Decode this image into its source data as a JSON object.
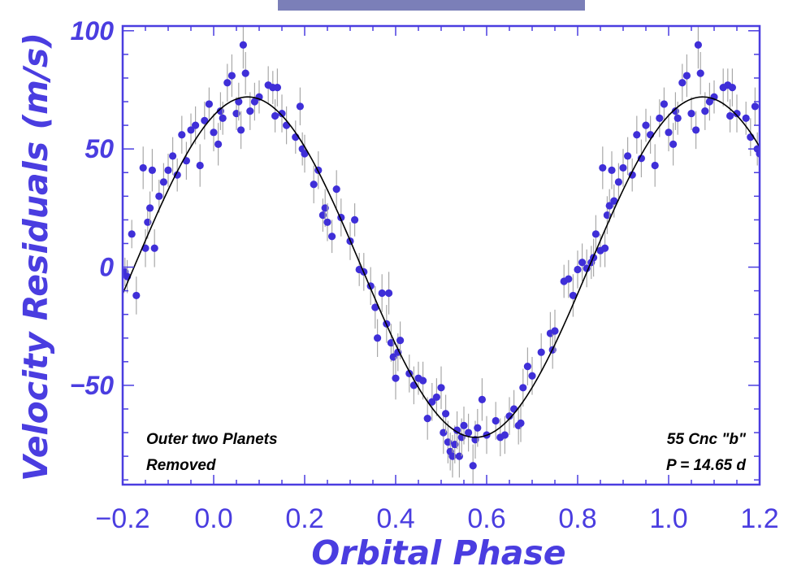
{
  "chart_data": {
    "type": "scatter",
    "title": "",
    "xlabel": "Orbital Phase",
    "ylabel": "Velocity Residuals (m/s)",
    "xlim": [
      -0.2,
      1.2
    ],
    "ylim": [
      -92,
      102
    ],
    "x_ticks": [
      -0.2,
      0.0,
      0.2,
      0.4,
      0.6,
      0.8,
      1.0,
      1.2
    ],
    "x_tick_labels": [
      "−0.2",
      "0.0",
      "0.2",
      "0.4",
      "0.6",
      "0.8",
      "1.0",
      "1.2"
    ],
    "y_ticks": [
      -50,
      0,
      50,
      100
    ],
    "y_tick_labels": [
      "−50",
      "0",
      "50",
      "100"
    ],
    "grid": false,
    "annotations": {
      "left_line1": "Outer two Planets",
      "left_line2": "Removed",
      "right_line1": "55 Cnc \"b\"",
      "right_line2": "P = 14.65 d"
    },
    "fit": {
      "amplitude": 72,
      "peak_phase": 0.075,
      "period_phase": 1.0
    },
    "series": [
      {
        "points": [
          [
            -0.195,
            -2,
            6
          ],
          [
            -0.19,
            -4,
            7
          ],
          [
            -0.18,
            14,
            6
          ],
          [
            -0.17,
            -12,
            8
          ],
          [
            -0.155,
            42,
            9
          ],
          [
            -0.15,
            8,
            8
          ],
          [
            -0.145,
            19,
            7
          ],
          [
            -0.14,
            25,
            7
          ],
          [
            -0.135,
            41,
            9
          ],
          [
            -0.13,
            8,
            8
          ],
          [
            -0.12,
            30,
            7
          ],
          [
            -0.11,
            36,
            8
          ],
          [
            -0.1,
            41,
            7
          ],
          [
            -0.09,
            47,
            8
          ],
          [
            -0.08,
            39,
            7
          ],
          [
            -0.07,
            56,
            8
          ],
          [
            -0.06,
            45,
            8
          ],
          [
            -0.05,
            58,
            7
          ],
          [
            -0.04,
            60,
            8
          ],
          [
            -0.03,
            43,
            9
          ],
          [
            -0.02,
            62,
            8
          ],
          [
            -0.01,
            69,
            7
          ],
          [
            0.0,
            57,
            8
          ],
          [
            0.01,
            52,
            9
          ],
          [
            0.015,
            66,
            8
          ],
          [
            0.02,
            63,
            7
          ],
          [
            0.03,
            78,
            8
          ],
          [
            0.04,
            81,
            9
          ],
          [
            0.05,
            65,
            7
          ],
          [
            0.055,
            70,
            8
          ],
          [
            0.06,
            58,
            8
          ],
          [
            0.065,
            94,
            10
          ],
          [
            0.07,
            82,
            9
          ],
          [
            0.08,
            66,
            8
          ],
          [
            0.09,
            70,
            8
          ],
          [
            0.1,
            72,
            7
          ],
          [
            0.12,
            77,
            8
          ],
          [
            0.13,
            76,
            7
          ],
          [
            0.135,
            64,
            7
          ],
          [
            0.14,
            76,
            8
          ],
          [
            0.15,
            65,
            8
          ],
          [
            0.16,
            60,
            8
          ],
          [
            0.18,
            55,
            7
          ],
          [
            0.19,
            68,
            8
          ],
          [
            0.195,
            50,
            7
          ],
          [
            0.2,
            48,
            8
          ],
          [
            0.22,
            35,
            8
          ],
          [
            0.23,
            41,
            8
          ],
          [
            0.24,
            22,
            7
          ],
          [
            0.245,
            25,
            8
          ],
          [
            0.25,
            19,
            8
          ],
          [
            0.26,
            13,
            7
          ],
          [
            0.27,
            33,
            8
          ],
          [
            0.28,
            21,
            8
          ],
          [
            0.3,
            11,
            8
          ],
          [
            0.31,
            20,
            7
          ],
          [
            0.32,
            -1,
            7
          ],
          [
            0.33,
            -2,
            8
          ],
          [
            0.345,
            -8,
            8
          ],
          [
            0.355,
            -17,
            9
          ],
          [
            0.36,
            -30,
            8
          ],
          [
            0.37,
            -11,
            8
          ],
          [
            0.38,
            -24,
            8
          ],
          [
            0.385,
            -11,
            9
          ],
          [
            0.39,
            -32,
            8
          ],
          [
            0.395,
            -38,
            8
          ],
          [
            0.4,
            -47,
            9
          ],
          [
            0.405,
            -36,
            8
          ],
          [
            0.41,
            -31,
            8
          ],
          [
            0.43,
            -45,
            8
          ],
          [
            0.44,
            -50,
            8
          ],
          [
            0.45,
            -47,
            7
          ],
          [
            0.46,
            -48,
            8
          ],
          [
            0.47,
            -64,
            9
          ],
          [
            0.48,
            -57,
            8
          ],
          [
            0.49,
            -55,
            8
          ],
          [
            0.5,
            -51,
            9
          ],
          [
            0.505,
            -70,
            9
          ],
          [
            0.51,
            -62,
            8
          ],
          [
            0.515,
            -74,
            9
          ],
          [
            0.52,
            -78,
            8
          ],
          [
            0.525,
            -80,
            9
          ],
          [
            0.53,
            -75,
            8
          ],
          [
            0.535,
            -69,
            8
          ],
          [
            0.54,
            -80,
            9
          ],
          [
            0.545,
            -72,
            8
          ],
          [
            0.55,
            -67,
            8
          ],
          [
            0.56,
            -70,
            8
          ],
          [
            0.57,
            -84,
            9
          ],
          [
            0.575,
            -73,
            8
          ],
          [
            0.58,
            -68,
            8
          ],
          [
            0.59,
            -56,
            9
          ],
          [
            0.6,
            -71,
            8
          ],
          [
            0.62,
            -65,
            8
          ],
          [
            0.63,
            -72,
            8
          ],
          [
            0.64,
            -71,
            8
          ],
          [
            0.65,
            -63,
            8
          ],
          [
            0.66,
            -60,
            8
          ],
          [
            0.67,
            -67,
            8
          ],
          [
            0.675,
            -66,
            8
          ],
          [
            0.68,
            -51,
            8
          ],
          [
            0.69,
            -42,
            8
          ],
          [
            0.7,
            -46,
            8
          ],
          [
            0.72,
            -36,
            8
          ],
          [
            0.74,
            -28,
            9
          ],
          [
            0.745,
            -35,
            8
          ],
          [
            0.75,
            -27,
            9
          ],
          [
            0.77,
            -6,
            7
          ],
          [
            0.78,
            -5,
            8
          ],
          [
            0.79,
            -12,
            9
          ],
          [
            0.8,
            -1,
            8
          ],
          [
            0.81,
            2,
            8
          ],
          [
            0.82,
            -0.5,
            8
          ],
          [
            0.83,
            2,
            7
          ],
          [
            0.835,
            4,
            8
          ],
          [
            0.84,
            14,
            8
          ],
          [
            0.85,
            7,
            7
          ],
          [
            0.855,
            42,
            9
          ],
          [
            0.86,
            8,
            8
          ],
          [
            0.865,
            22,
            8
          ],
          [
            0.87,
            26,
            7
          ],
          [
            0.875,
            41,
            8
          ],
          [
            0.88,
            28,
            7
          ],
          [
            0.89,
            36,
            8
          ],
          [
            0.9,
            42,
            8
          ],
          [
            0.91,
            47,
            8
          ],
          [
            0.92,
            39,
            7
          ],
          [
            0.93,
            56,
            8
          ],
          [
            0.94,
            46,
            8
          ],
          [
            0.95,
            60,
            7
          ],
          [
            0.96,
            56,
            8
          ],
          [
            0.97,
            43,
            9
          ],
          [
            0.98,
            63,
            8
          ],
          [
            0.99,
            69,
            7
          ],
          [
            1.0,
            57,
            8
          ],
          [
            1.01,
            52,
            9
          ],
          [
            1.015,
            66,
            8
          ],
          [
            1.02,
            63,
            7
          ],
          [
            1.03,
            78,
            8
          ],
          [
            1.04,
            81,
            9
          ],
          [
            1.05,
            65,
            7
          ],
          [
            1.06,
            58,
            8
          ],
          [
            1.065,
            94,
            10
          ],
          [
            1.07,
            82,
            9
          ],
          [
            1.08,
            66,
            8
          ],
          [
            1.09,
            70,
            8
          ],
          [
            1.1,
            72,
            7
          ],
          [
            1.12,
            76,
            8
          ],
          [
            1.13,
            77,
            7
          ],
          [
            1.135,
            64,
            7
          ],
          [
            1.14,
            76,
            8
          ],
          [
            1.15,
            65,
            8
          ],
          [
            1.17,
            63,
            7
          ],
          [
            1.18,
            55,
            8
          ],
          [
            1.19,
            68,
            8
          ],
          [
            1.195,
            50,
            7
          ],
          [
            1.2,
            48,
            8
          ]
        ]
      }
    ]
  },
  "colors": {
    "accent": "#4a3de0",
    "marker": "#3f2fd8",
    "errorbar": "#a8a8a8",
    "fit": "#000000",
    "top_bar": "#7b7fb8"
  }
}
